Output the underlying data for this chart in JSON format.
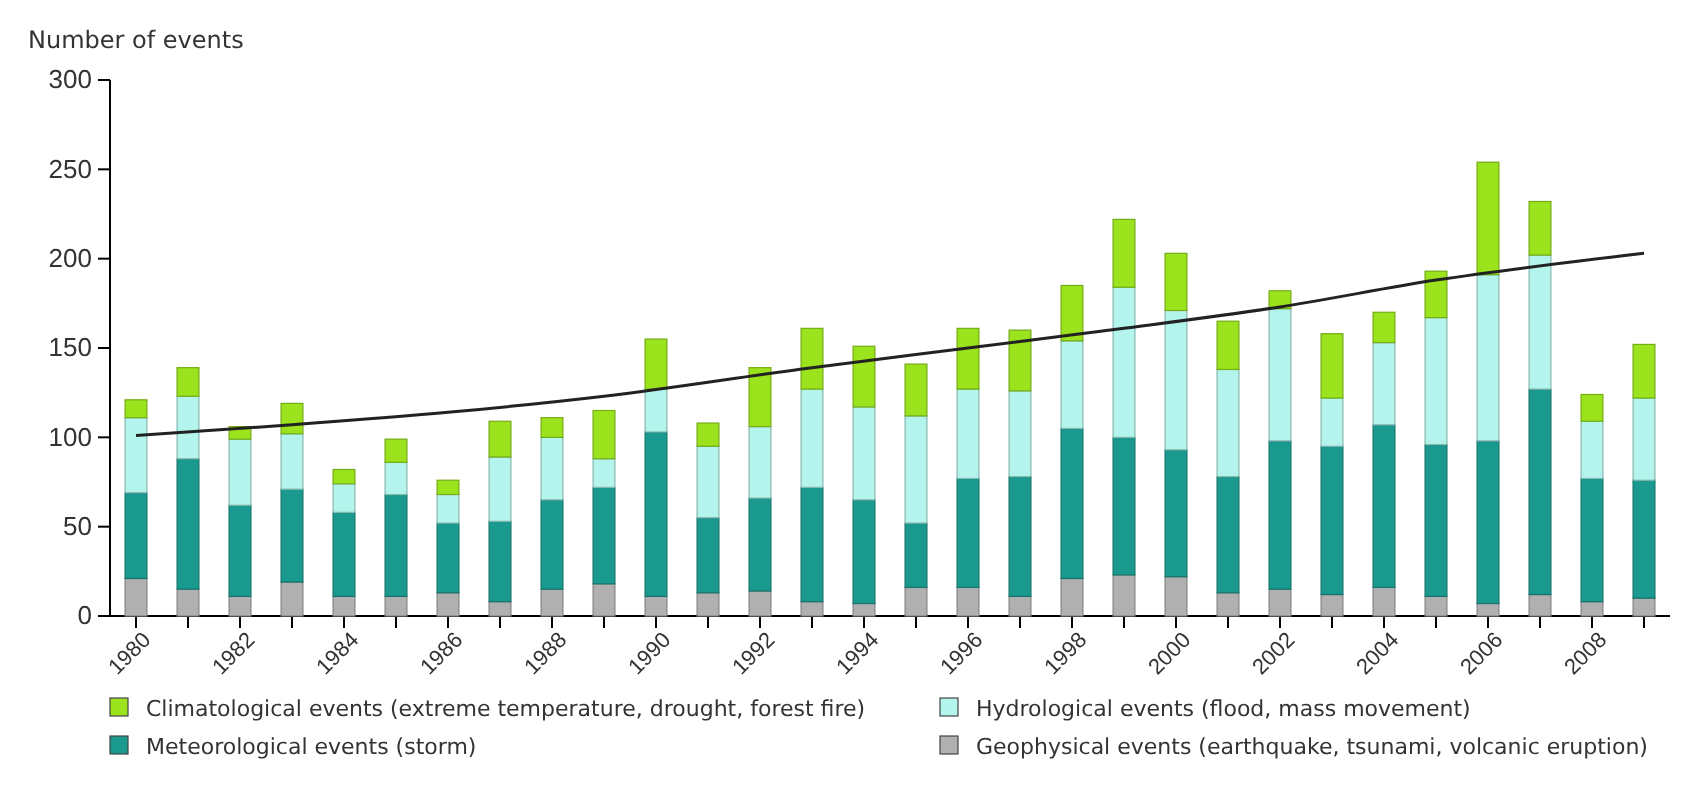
{
  "chart_data": {
    "type": "bar",
    "stacked": true,
    "ylabel": "Number of events",
    "x": [
      1980,
      1981,
      1982,
      1983,
      1984,
      1985,
      1986,
      1987,
      1988,
      1989,
      1990,
      1991,
      1992,
      1993,
      1994,
      1995,
      1996,
      1997,
      1998,
      1999,
      2000,
      2001,
      2002,
      2003,
      2004,
      2005,
      2006,
      2007,
      2008,
      2009
    ],
    "xlim": [
      1979.5,
      2009.5
    ],
    "xticks": [
      1980,
      {
        "value": 1981,
        "label": null
      },
      1982,
      {
        "value": 1983,
        "label": null
      },
      1984,
      {
        "value": 1985,
        "label": null
      },
      1986,
      {
        "value": 1987,
        "label": null
      },
      1988,
      {
        "value": 1989,
        "label": null
      },
      1990,
      {
        "value": 1991,
        "label": null
      },
      1992,
      {
        "value": 1993,
        "label": null
      },
      1994,
      {
        "value": 1995,
        "label": null
      },
      1996,
      {
        "value": 1997,
        "label": null
      },
      1998,
      {
        "value": 1999,
        "label": null
      },
      2000,
      {
        "value": 2001,
        "label": null
      },
      2002,
      {
        "value": 2003,
        "label": null
      },
      2004,
      {
        "value": 2005,
        "label": null
      },
      2006,
      {
        "value": 2007,
        "label": null
      },
      2008,
      {
        "value": 2009,
        "label": null
      }
    ],
    "ylim": [
      0,
      300
    ],
    "yticks": [
      0,
      50,
      100,
      150,
      200,
      250,
      300
    ],
    "legend": "bottom",
    "series": [
      {
        "name": "Geophysical events (earthquake, tsunami, volcanic eruption)",
        "color": "#b0b0b0",
        "values": [
          21,
          15,
          11,
          19,
          11,
          11,
          13,
          8,
          15,
          18,
          11,
          13,
          14,
          8,
          7,
          16,
          16,
          11,
          21,
          23,
          22,
          13,
          15,
          12,
          16,
          11,
          7,
          12,
          8,
          10
        ]
      },
      {
        "name": "Meteorological events (storm)",
        "color": "#1a9a8f",
        "values": [
          48,
          73,
          51,
          52,
          47,
          57,
          39,
          45,
          50,
          54,
          92,
          42,
          52,
          64,
          58,
          36,
          61,
          67,
          84,
          77,
          71,
          65,
          83,
          83,
          91,
          85,
          91,
          115,
          69,
          66
        ]
      },
      {
        "name": "Hydrological events (flood, mass movement)",
        "color": "#b3f5ec",
        "values": [
          42,
          35,
          37,
          31,
          16,
          18,
          16,
          36,
          35,
          16,
          24,
          40,
          40,
          55,
          52,
          60,
          50,
          48,
          49,
          84,
          78,
          60,
          74,
          27,
          46,
          71,
          93,
          75,
          32,
          46
        ]
      },
      {
        "name": "Climatological events (extreme temperature, drought, forest fire)",
        "color": "#9be31c",
        "values": [
          10,
          16,
          7,
          17,
          8,
          13,
          8,
          20,
          11,
          27,
          28,
          13,
          33,
          34,
          34,
          29,
          34,
          34,
          31,
          38,
          32,
          27,
          10,
          36,
          17,
          26,
          63,
          30,
          15,
          30
        ]
      },
      {
        "type": "line",
        "color": "#222222",
        "x": [
          1980,
          1983,
          1986,
          1989,
          1993,
          1996,
          1999,
          2002,
          2005,
          2009
        ],
        "values": [
          101,
          107,
          114,
          123,
          139,
          150,
          161,
          173,
          188,
          203
        ]
      }
    ]
  }
}
